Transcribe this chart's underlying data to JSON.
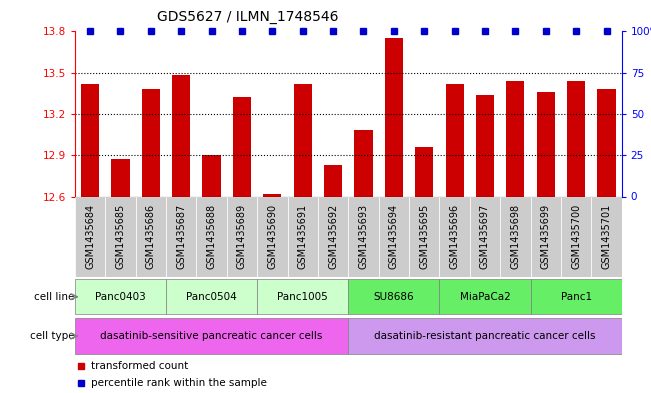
{
  "title": "GDS5627 / ILMN_1748546",
  "samples": [
    "GSM1435684",
    "GSM1435685",
    "GSM1435686",
    "GSM1435687",
    "GSM1435688",
    "GSM1435689",
    "GSM1435690",
    "GSM1435691",
    "GSM1435692",
    "GSM1435693",
    "GSM1435694",
    "GSM1435695",
    "GSM1435696",
    "GSM1435697",
    "GSM1435698",
    "GSM1435699",
    "GSM1435700",
    "GSM1435701"
  ],
  "transformed_counts": [
    13.42,
    12.87,
    13.38,
    13.48,
    12.9,
    13.32,
    12.62,
    13.42,
    12.83,
    13.08,
    13.75,
    12.96,
    13.42,
    13.34,
    13.44,
    13.36,
    13.44,
    13.38
  ],
  "ylim_left": [
    12.6,
    13.8
  ],
  "yticks_left": [
    12.6,
    12.9,
    13.2,
    13.5,
    13.8
  ],
  "yticks_right": [
    0,
    25,
    50,
    75,
    100
  ],
  "bar_color": "#cc0000",
  "square_color": "#0000cc",
  "sample_box_color": "#cccccc",
  "cell_lines": [
    {
      "label": "Panc0403",
      "start": 0,
      "end": 2,
      "color": "#ccffcc"
    },
    {
      "label": "Panc0504",
      "start": 3,
      "end": 5,
      "color": "#ccffcc"
    },
    {
      "label": "Panc1005",
      "start": 6,
      "end": 8,
      "color": "#ccffcc"
    },
    {
      "label": "SU8686",
      "start": 9,
      "end": 11,
      "color": "#66ee66"
    },
    {
      "label": "MiaPaCa2",
      "start": 12,
      "end": 14,
      "color": "#66ee66"
    },
    {
      "label": "Panc1",
      "start": 15,
      "end": 17,
      "color": "#66ee66"
    }
  ],
  "cell_types": [
    {
      "label": "dasatinib-sensitive pancreatic cancer cells",
      "start": 0,
      "end": 8,
      "color": "#ee66ee"
    },
    {
      "label": "dasatinib-resistant pancreatic cancer cells",
      "start": 9,
      "end": 17,
      "color": "#cc99ee"
    }
  ],
  "legend_items": [
    {
      "label": "transformed count",
      "color": "#cc0000"
    },
    {
      "label": "percentile rank within the sample",
      "color": "#0000cc"
    }
  ],
  "label_fontsize": 7,
  "tick_fontsize": 7.5,
  "title_fontsize": 10
}
